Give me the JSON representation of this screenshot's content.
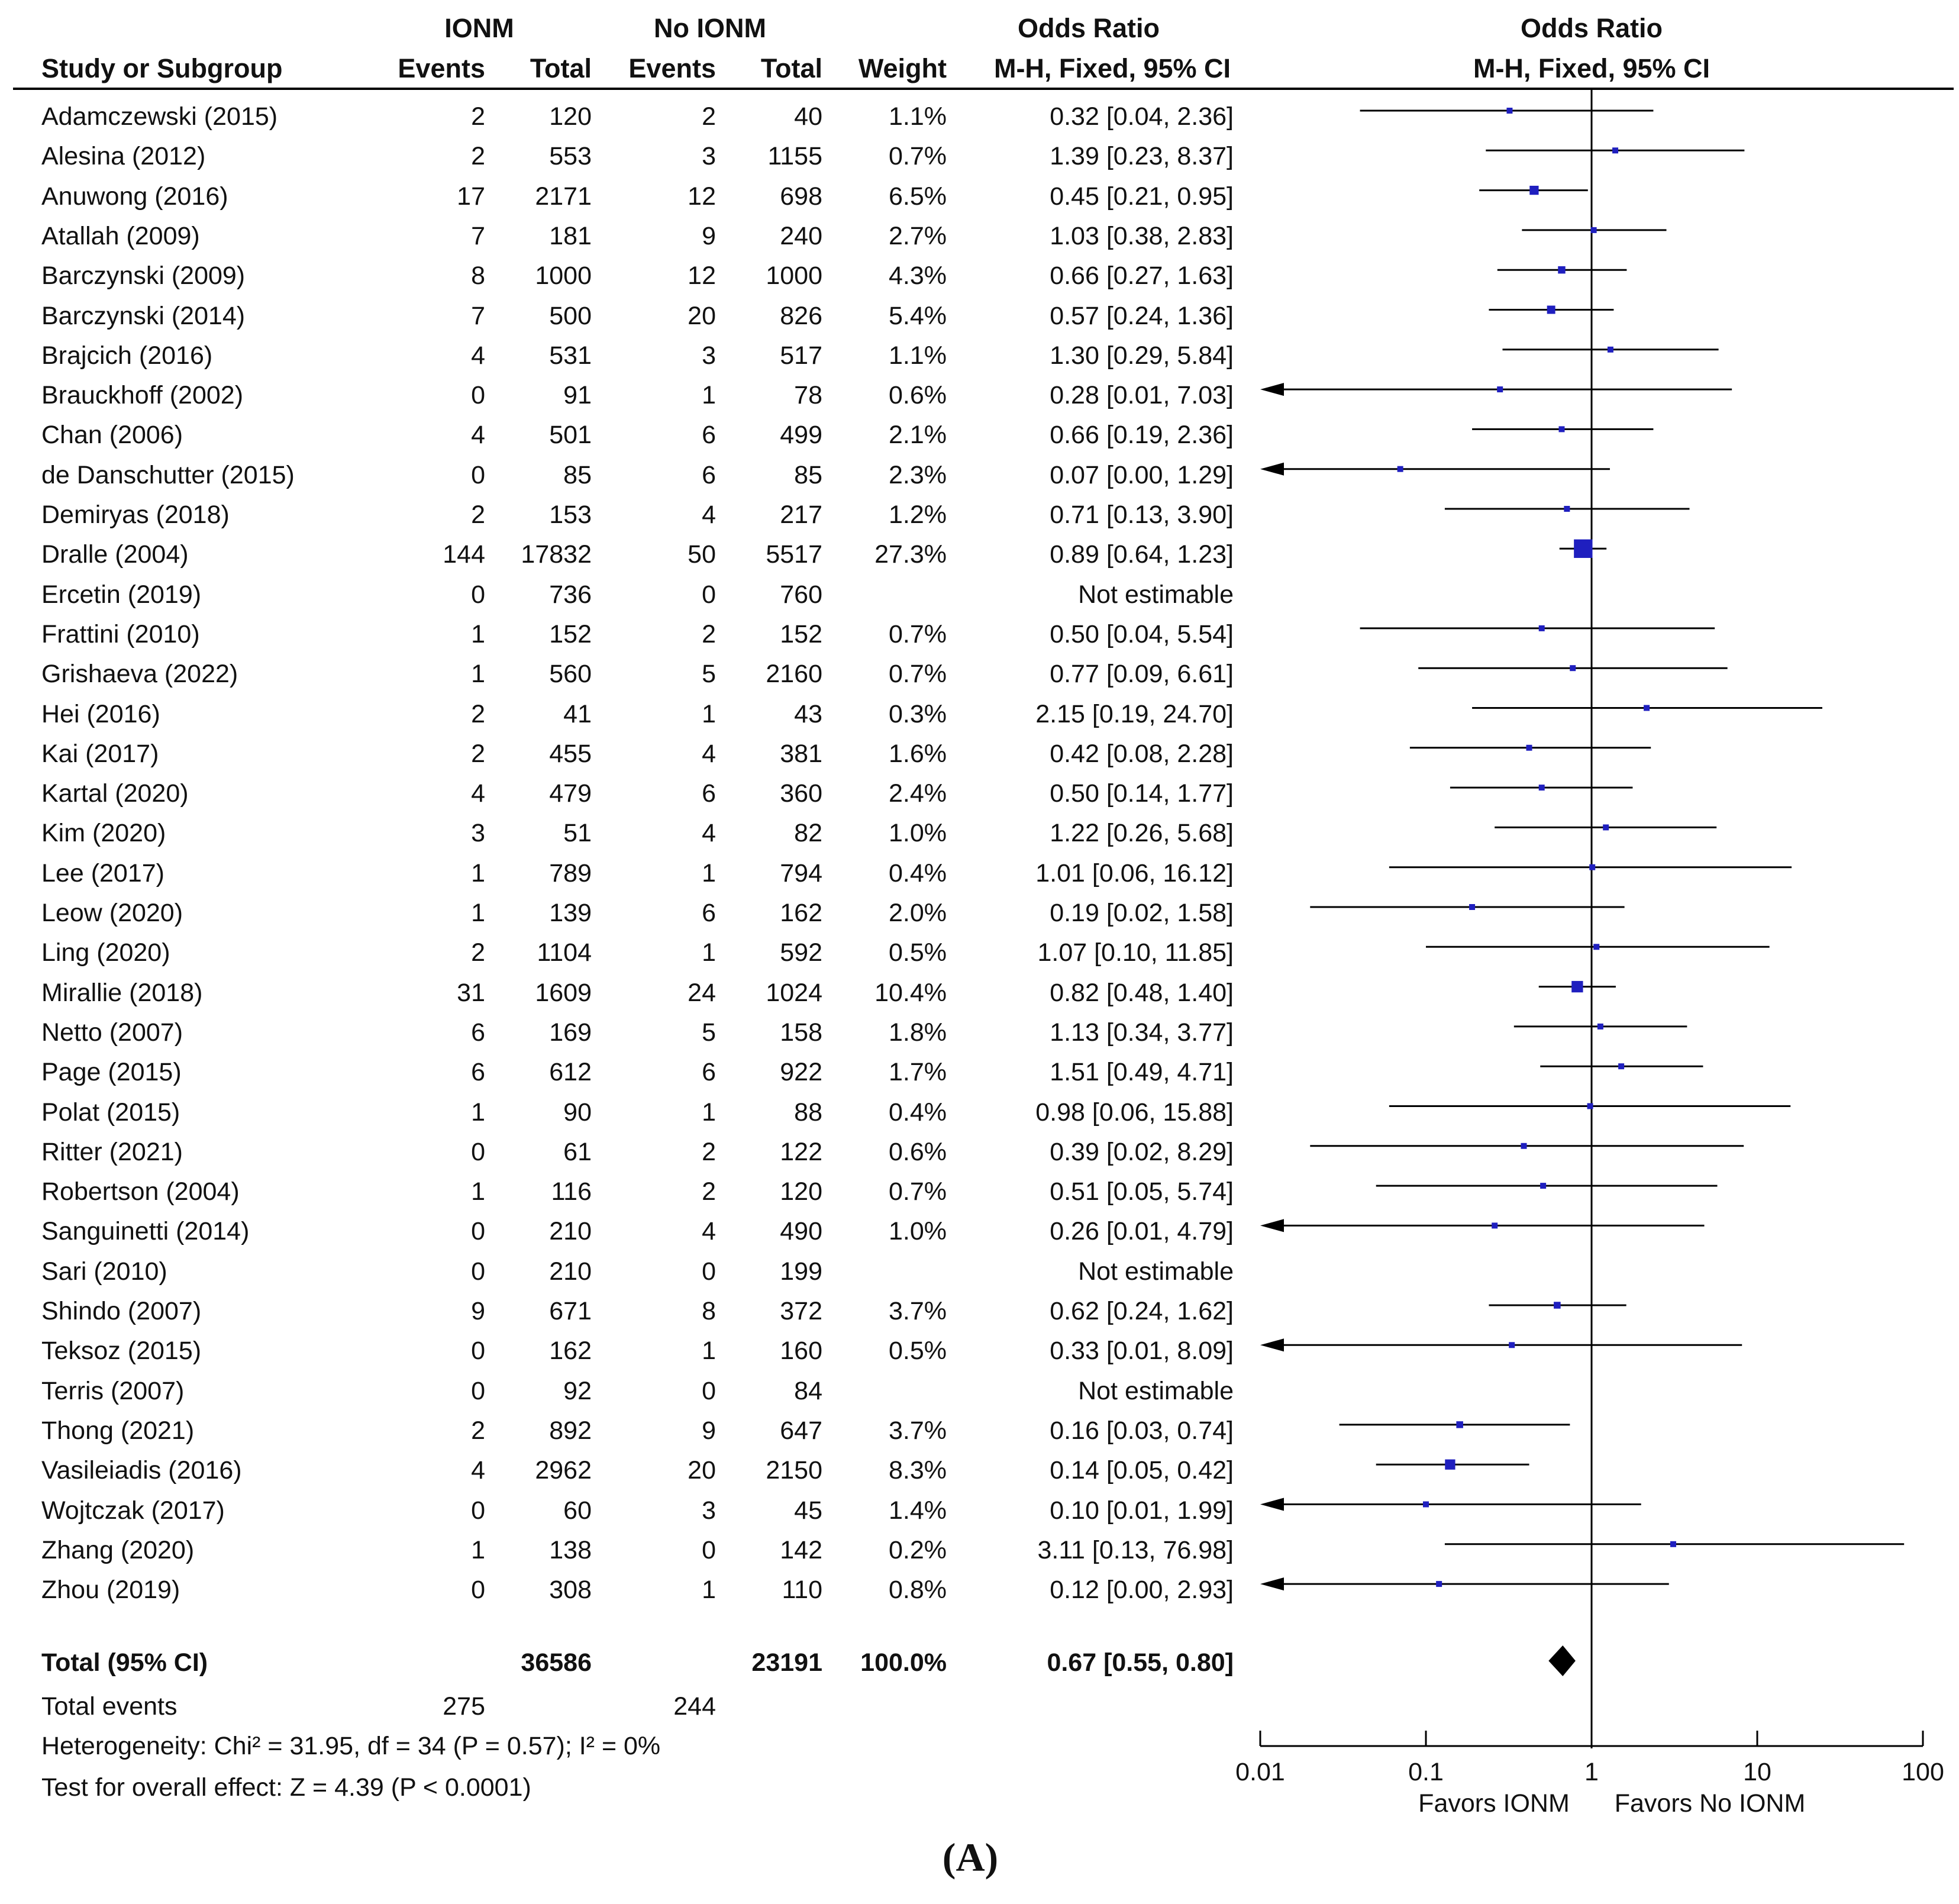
{
  "headers": {
    "group1": "IONM",
    "group2": "No IONM",
    "or_top": "Odds Ratio",
    "or_sub": "M-H, Fixed, 95% CI",
    "plot_top": "Odds Ratio",
    "plot_sub": "M-H, Fixed, 95% CI",
    "study": "Study or Subgroup",
    "events1": "Events",
    "total1": "Total",
    "events2": "Events",
    "total2": "Total",
    "weight": "Weight"
  },
  "studies": [
    {
      "name": "Adamczewski (2015)",
      "e1": "2",
      "t1": "120",
      "e2": "2",
      "t2": "40",
      "w": "1.1%",
      "ci": "0.32 [0.04, 2.36]"
    },
    {
      "name": "Alesina (2012)",
      "e1": "2",
      "t1": "553",
      "e2": "3",
      "t2": "1155",
      "w": "0.7%",
      "ci": "1.39 [0.23, 8.37]"
    },
    {
      "name": "Anuwong (2016)",
      "e1": "17",
      "t1": "2171",
      "e2": "12",
      "t2": "698",
      "w": "6.5%",
      "ci": "0.45 [0.21, 0.95]"
    },
    {
      "name": "Atallah (2009)",
      "e1": "7",
      "t1": "181",
      "e2": "9",
      "t2": "240",
      "w": "2.7%",
      "ci": "1.03 [0.38, 2.83]"
    },
    {
      "name": "Barczynski (2009)",
      "e1": "8",
      "t1": "1000",
      "e2": "12",
      "t2": "1000",
      "w": "4.3%",
      "ci": "0.66 [0.27, 1.63]"
    },
    {
      "name": "Barczynski (2014)",
      "e1": "7",
      "t1": "500",
      "e2": "20",
      "t2": "826",
      "w": "5.4%",
      "ci": "0.57 [0.24, 1.36]"
    },
    {
      "name": "Brajcich (2016)",
      "e1": "4",
      "t1": "531",
      "e2": "3",
      "t2": "517",
      "w": "1.1%",
      "ci": "1.30 [0.29, 5.84]"
    },
    {
      "name": "Brauckhoff (2002)",
      "e1": "0",
      "t1": "91",
      "e2": "1",
      "t2": "78",
      "w": "0.6%",
      "ci": "0.28 [0.01, 7.03]"
    },
    {
      "name": "Chan (2006)",
      "e1": "4",
      "t1": "501",
      "e2": "6",
      "t2": "499",
      "w": "2.1%",
      "ci": "0.66 [0.19, 2.36]"
    },
    {
      "name": "de Danschutter (2015)",
      "e1": "0",
      "t1": "85",
      "e2": "6",
      "t2": "85",
      "w": "2.3%",
      "ci": "0.07 [0.00, 1.29]"
    },
    {
      "name": "Demiryas (2018)",
      "e1": "2",
      "t1": "153",
      "e2": "4",
      "t2": "217",
      "w": "1.2%",
      "ci": "0.71 [0.13, 3.90]"
    },
    {
      "name": "Dralle (2004)",
      "e1": "144",
      "t1": "17832",
      "e2": "50",
      "t2": "5517",
      "w": "27.3%",
      "ci": "0.89 [0.64, 1.23]"
    },
    {
      "name": "Ercetin (2019)",
      "e1": "0",
      "t1": "736",
      "e2": "0",
      "t2": "760",
      "w": "",
      "ci": "Not estimable"
    },
    {
      "name": "Frattini (2010)",
      "e1": "1",
      "t1": "152",
      "e2": "2",
      "t2": "152",
      "w": "0.7%",
      "ci": "0.50 [0.04, 5.54]"
    },
    {
      "name": "Grishaeva (2022)",
      "e1": "1",
      "t1": "560",
      "e2": "5",
      "t2": "2160",
      "w": "0.7%",
      "ci": "0.77 [0.09, 6.61]"
    },
    {
      "name": "Hei (2016)",
      "e1": "2",
      "t1": "41",
      "e2": "1",
      "t2": "43",
      "w": "0.3%",
      "ci": "2.15 [0.19, 24.70]"
    },
    {
      "name": "Kai (2017)",
      "e1": "2",
      "t1": "455",
      "e2": "4",
      "t2": "381",
      "w": "1.6%",
      "ci": "0.42 [0.08, 2.28]"
    },
    {
      "name": "Kartal (2020)",
      "e1": "4",
      "t1": "479",
      "e2": "6",
      "t2": "360",
      "w": "2.4%",
      "ci": "0.50 [0.14, 1.77]"
    },
    {
      "name": "Kim (2020)",
      "e1": "3",
      "t1": "51",
      "e2": "4",
      "t2": "82",
      "w": "1.0%",
      "ci": "1.22 [0.26, 5.68]"
    },
    {
      "name": "Lee (2017)",
      "e1": "1",
      "t1": "789",
      "e2": "1",
      "t2": "794",
      "w": "0.4%",
      "ci": "1.01 [0.06, 16.12]"
    },
    {
      "name": "Leow (2020)",
      "e1": "1",
      "t1": "139",
      "e2": "6",
      "t2": "162",
      "w": "2.0%",
      "ci": "0.19 [0.02, 1.58]"
    },
    {
      "name": "Ling (2020)",
      "e1": "2",
      "t1": "1104",
      "e2": "1",
      "t2": "592",
      "w": "0.5%",
      "ci": "1.07 [0.10, 11.85]"
    },
    {
      "name": "Mirallie (2018)",
      "e1": "31",
      "t1": "1609",
      "e2": "24",
      "t2": "1024",
      "w": "10.4%",
      "ci": "0.82 [0.48, 1.40]"
    },
    {
      "name": "Netto (2007)",
      "e1": "6",
      "t1": "169",
      "e2": "5",
      "t2": "158",
      "w": "1.8%",
      "ci": "1.13 [0.34, 3.77]"
    },
    {
      "name": "Page (2015)",
      "e1": "6",
      "t1": "612",
      "e2": "6",
      "t2": "922",
      "w": "1.7%",
      "ci": "1.51 [0.49, 4.71]"
    },
    {
      "name": "Polat (2015)",
      "e1": "1",
      "t1": "90",
      "e2": "1",
      "t2": "88",
      "w": "0.4%",
      "ci": "0.98 [0.06, 15.88]"
    },
    {
      "name": "Ritter (2021)",
      "e1": "0",
      "t1": "61",
      "e2": "2",
      "t2": "122",
      "w": "0.6%",
      "ci": "0.39 [0.02, 8.29]"
    },
    {
      "name": "Robertson (2004)",
      "e1": "1",
      "t1": "116",
      "e2": "2",
      "t2": "120",
      "w": "0.7%",
      "ci": "0.51 [0.05, 5.74]"
    },
    {
      "name": "Sanguinetti (2014)",
      "e1": "0",
      "t1": "210",
      "e2": "4",
      "t2": "490",
      "w": "1.0%",
      "ci": "0.26 [0.01, 4.79]"
    },
    {
      "name": "Sari (2010)",
      "e1": "0",
      "t1": "210",
      "e2": "0",
      "t2": "199",
      "w": "",
      "ci": "Not estimable"
    },
    {
      "name": "Shindo (2007)",
      "e1": "9",
      "t1": "671",
      "e2": "8",
      "t2": "372",
      "w": "3.7%",
      "ci": "0.62 [0.24, 1.62]"
    },
    {
      "name": "Teksoz (2015)",
      "e1": "0",
      "t1": "162",
      "e2": "1",
      "t2": "160",
      "w": "0.5%",
      "ci": "0.33 [0.01, 8.09]"
    },
    {
      "name": "Terris (2007)",
      "e1": "0",
      "t1": "92",
      "e2": "0",
      "t2": "84",
      "w": "",
      "ci": "Not estimable"
    },
    {
      "name": "Thong (2021)",
      "e1": "2",
      "t1": "892",
      "e2": "9",
      "t2": "647",
      "w": "3.7%",
      "ci": "0.16 [0.03, 0.74]"
    },
    {
      "name": "Vasileiadis (2016)",
      "e1": "4",
      "t1": "2962",
      "e2": "20",
      "t2": "2150",
      "w": "8.3%",
      "ci": "0.14 [0.05, 0.42]"
    },
    {
      "name": "Wojtczak (2017)",
      "e1": "0",
      "t1": "60",
      "e2": "3",
      "t2": "45",
      "w": "1.4%",
      "ci": "0.10 [0.01, 1.99]"
    },
    {
      "name": "Zhang (2020)",
      "e1": "1",
      "t1": "138",
      "e2": "0",
      "t2": "142",
      "w": "0.2%",
      "ci": "3.11 [0.13, 76.98]"
    },
    {
      "name": "Zhou (2019)",
      "e1": "0",
      "t1": "308",
      "e2": "1",
      "t2": "110",
      "w": "0.8%",
      "ci": "0.12 [0.00, 2.93]"
    }
  ],
  "total": {
    "label": "Total (95% CI)",
    "t1": "36586",
    "t2": "23191",
    "w": "100.0%",
    "ci": "0.67 [0.55, 0.80]"
  },
  "events": {
    "label": "Total events",
    "e1": "275",
    "e2": "244"
  },
  "heterogeneity": "Heterogeneity: Chi² = 31.95, df = 34 (P = 0.57); I² = 0%",
  "overall_effect": "Test for overall effect: Z = 4.39 (P < 0.0001)",
  "favors_left": "Favors IONM",
  "favors_right": "Favors No IONM",
  "panel_label": "(A)",
  "colors": {
    "marker": "#1f1fbf",
    "line": "#000000",
    "text": "#111111"
  },
  "chart_data": {
    "type": "forest",
    "xscale": "log",
    "xlim": [
      0.01,
      100
    ],
    "reference_line": 1,
    "xticks": [
      0.01,
      0.1,
      1,
      10,
      100
    ],
    "xtick_labels": [
      "0.01",
      "0.1",
      "1",
      "10",
      "100"
    ],
    "points": [
      {
        "or": 0.32,
        "lo": 0.04,
        "hi": 2.36,
        "weight": 1.1
      },
      {
        "or": 1.39,
        "lo": 0.23,
        "hi": 8.37,
        "weight": 0.7
      },
      {
        "or": 0.45,
        "lo": 0.21,
        "hi": 0.95,
        "weight": 6.5
      },
      {
        "or": 1.03,
        "lo": 0.38,
        "hi": 2.83,
        "weight": 2.7
      },
      {
        "or": 0.66,
        "lo": 0.27,
        "hi": 1.63,
        "weight": 4.3
      },
      {
        "or": 0.57,
        "lo": 0.24,
        "hi": 1.36,
        "weight": 5.4
      },
      {
        "or": 1.3,
        "lo": 0.29,
        "hi": 5.84,
        "weight": 1.1
      },
      {
        "or": 0.28,
        "lo": 0.01,
        "hi": 7.03,
        "weight": 0.6
      },
      {
        "or": 0.66,
        "lo": 0.19,
        "hi": 2.36,
        "weight": 2.1
      },
      {
        "or": 0.07,
        "lo": 0.0,
        "hi": 1.29,
        "weight": 2.3
      },
      {
        "or": 0.71,
        "lo": 0.13,
        "hi": 3.9,
        "weight": 1.2
      },
      {
        "or": 0.89,
        "lo": 0.64,
        "hi": 1.23,
        "weight": 27.3
      },
      null,
      {
        "or": 0.5,
        "lo": 0.04,
        "hi": 5.54,
        "weight": 0.7
      },
      {
        "or": 0.77,
        "lo": 0.09,
        "hi": 6.61,
        "weight": 0.7
      },
      {
        "or": 2.15,
        "lo": 0.19,
        "hi": 24.7,
        "weight": 0.3
      },
      {
        "or": 0.42,
        "lo": 0.08,
        "hi": 2.28,
        "weight": 1.6
      },
      {
        "or": 0.5,
        "lo": 0.14,
        "hi": 1.77,
        "weight": 2.4
      },
      {
        "or": 1.22,
        "lo": 0.26,
        "hi": 5.68,
        "weight": 1.0
      },
      {
        "or": 1.01,
        "lo": 0.06,
        "hi": 16.12,
        "weight": 0.4
      },
      {
        "or": 0.19,
        "lo": 0.02,
        "hi": 1.58,
        "weight": 2.0
      },
      {
        "or": 1.07,
        "lo": 0.1,
        "hi": 11.85,
        "weight": 0.5
      },
      {
        "or": 0.82,
        "lo": 0.48,
        "hi": 1.4,
        "weight": 10.4
      },
      {
        "or": 1.13,
        "lo": 0.34,
        "hi": 3.77,
        "weight": 1.8
      },
      {
        "or": 1.51,
        "lo": 0.49,
        "hi": 4.71,
        "weight": 1.7
      },
      {
        "or": 0.98,
        "lo": 0.06,
        "hi": 15.88,
        "weight": 0.4
      },
      {
        "or": 0.39,
        "lo": 0.02,
        "hi": 8.29,
        "weight": 0.6
      },
      {
        "or": 0.51,
        "lo": 0.05,
        "hi": 5.74,
        "weight": 0.7
      },
      {
        "or": 0.26,
        "lo": 0.01,
        "hi": 4.79,
        "weight": 1.0
      },
      null,
      {
        "or": 0.62,
        "lo": 0.24,
        "hi": 1.62,
        "weight": 3.7
      },
      {
        "or": 0.33,
        "lo": 0.01,
        "hi": 8.09,
        "weight": 0.5
      },
      null,
      {
        "or": 0.16,
        "lo": 0.03,
        "hi": 0.74,
        "weight": 3.7
      },
      {
        "or": 0.14,
        "lo": 0.05,
        "hi": 0.42,
        "weight": 8.3
      },
      {
        "or": 0.1,
        "lo": 0.01,
        "hi": 1.99,
        "weight": 1.4
      },
      {
        "or": 3.11,
        "lo": 0.13,
        "hi": 76.98,
        "weight": 0.2
      },
      {
        "or": 0.12,
        "lo": 0.0,
        "hi": 2.93,
        "weight": 0.8
      }
    ],
    "pooled": {
      "or": 0.67,
      "lo": 0.55,
      "hi": 0.8
    }
  }
}
